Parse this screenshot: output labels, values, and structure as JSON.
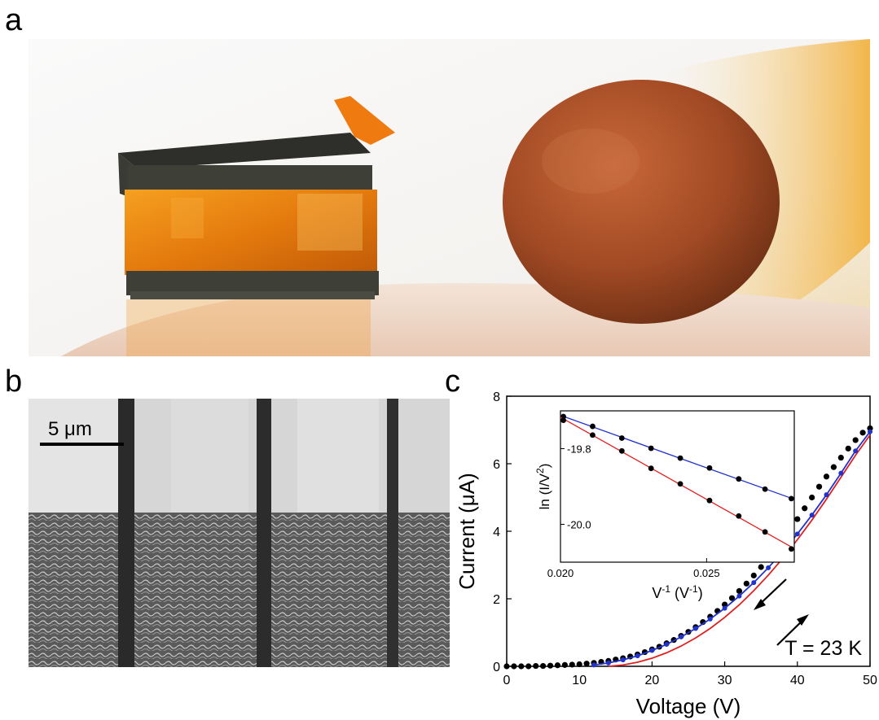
{
  "figure": {
    "panel_a": {
      "letter": "a"
    },
    "panel_b": {
      "letter": "b",
      "scale_bar_label": "5 μm"
    },
    "panel_c": {
      "letter": "c"
    }
  },
  "chart_data": [
    {
      "type": "scatter",
      "xlabel": "Voltage (V)",
      "ylabel": "Current (μA)",
      "xlim": [
        0,
        50
      ],
      "ylim": [
        0,
        8
      ],
      "xticks": [
        0,
        10,
        20,
        30,
        40,
        50
      ],
      "yticks": [
        0,
        2,
        4,
        6,
        8
      ],
      "annotation": "T = 23 K",
      "grid": false,
      "series": [
        {
          "color": "#000000",
          "marker": "circle",
          "x": [
            0,
            1,
            2,
            3,
            4,
            5,
            6,
            7,
            8,
            9,
            10,
            11,
            12,
            13,
            14,
            15,
            16,
            17,
            18,
            19,
            20,
            21,
            22,
            23,
            24,
            25,
            26,
            27,
            28,
            29,
            30,
            31,
            32,
            33,
            34,
            35,
            36,
            37,
            38,
            39,
            40,
            41,
            42,
            43,
            44,
            45,
            46,
            47,
            48,
            49,
            50
          ],
          "y": [
            0,
            0,
            0,
            0,
            0.01,
            0.01,
            0.02,
            0.03,
            0.04,
            0.05,
            0.06,
            0.08,
            0.1,
            0.13,
            0.16,
            0.2,
            0.24,
            0.29,
            0.35,
            0.42,
            0.5,
            0.58,
            0.68,
            0.78,
            0.9,
            1.02,
            1.16,
            1.31,
            1.47,
            1.64,
            1.83,
            2.02,
            2.23,
            2.45,
            2.69,
            2.94,
            3.2,
            3.48,
            3.76,
            4.06,
            4.36,
            4.68,
            5.0,
            5.32,
            5.62,
            5.9,
            6.18,
            6.45,
            6.7,
            6.92,
            7.05
          ]
        },
        {
          "color": "#2233cc",
          "style": "line",
          "x": [
            12,
            14,
            16,
            18,
            20,
            22,
            24,
            26,
            28,
            30,
            32,
            34,
            36,
            38,
            40,
            42,
            44,
            46,
            48,
            50
          ],
          "y": [
            0.04,
            0.1,
            0.19,
            0.31,
            0.47,
            0.65,
            0.87,
            1.12,
            1.4,
            1.72,
            2.08,
            2.48,
            2.92,
            3.4,
            3.92,
            4.48,
            5.08,
            5.72,
            6.38,
            6.95
          ]
        },
        {
          "color": "#e02020",
          "style": "line",
          "x": [
            14,
            16,
            18,
            20,
            22,
            24,
            26,
            28,
            30,
            32,
            34,
            36,
            38,
            40,
            42,
            44,
            46,
            48,
            50
          ],
          "y": [
            0.0,
            0.04,
            0.12,
            0.24,
            0.4,
            0.6,
            0.84,
            1.12,
            1.45,
            1.82,
            2.24,
            2.7,
            3.2,
            3.75,
            4.33,
            4.95,
            5.6,
            6.25,
            6.85
          ]
        }
      ]
    },
    {
      "type": "scatter",
      "xlabel": "V",
      "xlabel_sup": "-1",
      "xlabel_unit": " (V",
      "xlabel_unit_sup": "-1",
      "xlabel_tail": ")",
      "ylabel": "ln (I/V",
      "ylabel_sup": "2",
      "ylabel_tail": ")",
      "xlim": [
        0.02,
        0.028
      ],
      "ylim": [
        -20.1,
        -19.7
      ],
      "xticks": [
        0.02,
        0.025
      ],
      "yticks": [
        -19.8,
        -20.0
      ],
      "series": [
        {
          "color": "#2233cc",
          "x": [
            0.0201,
            0.0211,
            0.0221,
            0.0231,
            0.0241,
            0.0251,
            0.0261,
            0.027,
            0.0279
          ],
          "y": [
            -19.715,
            -19.741,
            -19.772,
            -19.799,
            -19.825,
            -19.851,
            -19.88,
            -19.907,
            -19.932
          ]
        },
        {
          "color": "#e02020",
          "x": [
            0.0201,
            0.0211,
            0.0221,
            0.0231,
            0.0241,
            0.0251,
            0.0261,
            0.027,
            0.0279
          ],
          "y": [
            -19.725,
            -19.764,
            -19.806,
            -19.852,
            -19.893,
            -19.937,
            -19.978,
            -20.02,
            -20.065
          ]
        }
      ]
    }
  ]
}
